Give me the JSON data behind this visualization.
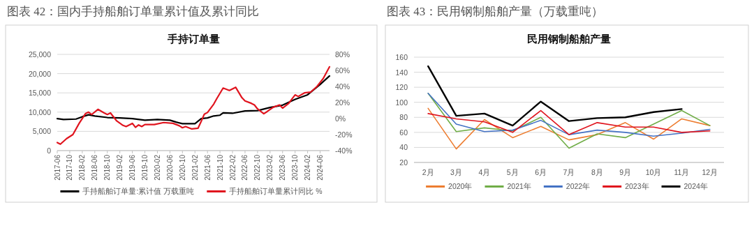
{
  "chart_data": [
    {
      "type": "line",
      "title": "图表 42：国内手持船舶订单量累计值及累计同比",
      "subtitle": "手持订单量",
      "xlim": [
        "2017-06",
        "2024-09"
      ],
      "xticks": [
        "2017-06",
        "2017-10",
        "2018-02",
        "2018-06",
        "2018-10",
        "2019-02",
        "2019-06",
        "2019-10",
        "2020-02",
        "2020-06",
        "2020-10",
        "2021-02",
        "2021-06",
        "2021-10",
        "2022-02",
        "2022-06",
        "2022-10",
        "2023-02",
        "2023-06",
        "2023-10",
        "2024-02",
        "2024-06"
      ],
      "ylim": [
        0,
        25000
      ],
      "yticks": [
        {
          "value": 0,
          "label": "0"
        },
        {
          "value": 5000,
          "label": "5,000"
        },
        {
          "value": 10000,
          "label": "10,000"
        },
        {
          "value": 15000,
          "label": "15,000"
        },
        {
          "value": 20000,
          "label": "20,000"
        },
        {
          "value": 25000,
          "label": "25,000"
        }
      ],
      "y2lim": [
        -40,
        80
      ],
      "y2ticks": [
        {
          "value": -40,
          "label": "-40%"
        },
        {
          "value": -20,
          "label": "-20%"
        },
        {
          "value": 0,
          "label": "0%"
        },
        {
          "value": 20,
          "label": "20%"
        },
        {
          "value": 40,
          "label": "40%"
        },
        {
          "value": 60,
          "label": "60%"
        },
        {
          "value": 80,
          "label": "80%"
        }
      ],
      "grid": "y",
      "legend": "bottom",
      "series": [
        {
          "name": "手持船舶订单量:累计值 万载重吨",
          "color": "#000000",
          "x": [
            "2017-06",
            "2017-08",
            "2017-12",
            "2018-02",
            "2018-04",
            "2018-06",
            "2018-10",
            "2019-02",
            "2019-06",
            "2019-10",
            "2020-02",
            "2020-06",
            "2020-08",
            "2020-10",
            "2021-02",
            "2021-04",
            "2021-06",
            "2021-08",
            "2021-10",
            "2021-11",
            "2022-02",
            "2022-06",
            "2022-10",
            "2023-02",
            "2023-06",
            "2023-10",
            "2024-02",
            "2024-06",
            "2024-09"
          ],
          "values": [
            8300,
            8100,
            8200,
            8800,
            9300,
            9000,
            8600,
            8500,
            8300,
            7900,
            8100,
            7900,
            7400,
            7000,
            7000,
            8300,
            8500,
            9000,
            9200,
            9800,
            9700,
            10300,
            10400,
            11200,
            11800,
            13300,
            14500,
            17200,
            19400
          ]
        },
        {
          "name": "手持船舶订单量累计同比 %",
          "color": "#e0141e",
          "axis": "y2",
          "x": [
            "2017-06",
            "2017-07",
            "2017-09",
            "2017-11",
            "2018-01",
            "2018-03",
            "2018-04",
            "2018-05",
            "2018-07",
            "2018-09",
            "2018-10",
            "2018-11",
            "2019-01",
            "2019-03",
            "2019-04",
            "2019-06",
            "2019-07",
            "2019-08",
            "2019-09",
            "2019-10",
            "2020-01",
            "2020-04",
            "2020-07",
            "2020-09",
            "2020-10",
            "2020-11",
            "2021-01",
            "2021-03",
            "2021-04",
            "2021-05",
            "2021-06",
            "2021-08",
            "2021-09",
            "2021-11",
            "2022-01",
            "2022-03",
            "2022-05",
            "2022-06",
            "2022-08",
            "2022-09",
            "2022-10",
            "2022-12",
            "2023-01",
            "2023-03",
            "2023-05",
            "2023-06",
            "2023-08",
            "2023-09",
            "2023-10",
            "2023-11",
            "2024-01",
            "2024-03",
            "2024-05",
            "2024-07",
            "2024-09"
          ],
          "values": [
            -30,
            -32,
            -25,
            -20,
            -6,
            6,
            8,
            5,
            11.5,
            7,
            5,
            7,
            -3,
            -8.5,
            -10,
            -6,
            -11,
            -8,
            -10,
            -7.5,
            -7.5,
            -5,
            -6,
            -9,
            -11.5,
            -10,
            -13,
            -12,
            -3.5,
            5.5,
            7.5,
            18,
            25,
            38,
            35,
            39,
            26,
            22,
            19,
            17,
            12,
            6,
            8.5,
            14,
            17,
            13,
            19,
            24.5,
            29.5,
            27.5,
            32,
            33,
            40,
            50,
            64.5
          ]
        }
      ]
    },
    {
      "type": "line",
      "title": "图表 43：民用钢制船舶产量（万载重吨）",
      "subtitle": "民用钢制船舶产量",
      "categories": [
        "2月",
        "3月",
        "4月",
        "5月",
        "6月",
        "7月",
        "8月",
        "9月",
        "10月",
        "11月",
        "12月"
      ],
      "ylim": [
        20,
        160
      ],
      "yticks": [
        20,
        40,
        60,
        80,
        100,
        120,
        140,
        160
      ],
      "grid": "y",
      "legend": "bottom",
      "series": [
        {
          "name": "2020年",
          "color": "#ed7d31",
          "values": [
            92,
            38,
            77,
            53,
            68,
            50,
            57,
            73,
            51,
            78,
            69
          ]
        },
        {
          "name": "2021年",
          "color": "#70ad47",
          "values": [
            112,
            61,
            66,
            62,
            80,
            39,
            58,
            53,
            71,
            89,
            69
          ]
        },
        {
          "name": "2022年",
          "color": "#4472c4",
          "values": [
            112,
            71,
            61,
            63,
            76,
            57,
            63,
            60,
            55,
            59,
            64
          ]
        },
        {
          "name": "2023年",
          "color": "#e0141e",
          "values": [
            85,
            78,
            74,
            60,
            89,
            57,
            73,
            67,
            67,
            60,
            62
          ]
        },
        {
          "name": "2024年",
          "color": "#000000",
          "values": [
            148,
            82,
            85,
            69,
            101,
            75,
            79,
            80,
            87,
            91,
            null
          ]
        }
      ]
    }
  ]
}
